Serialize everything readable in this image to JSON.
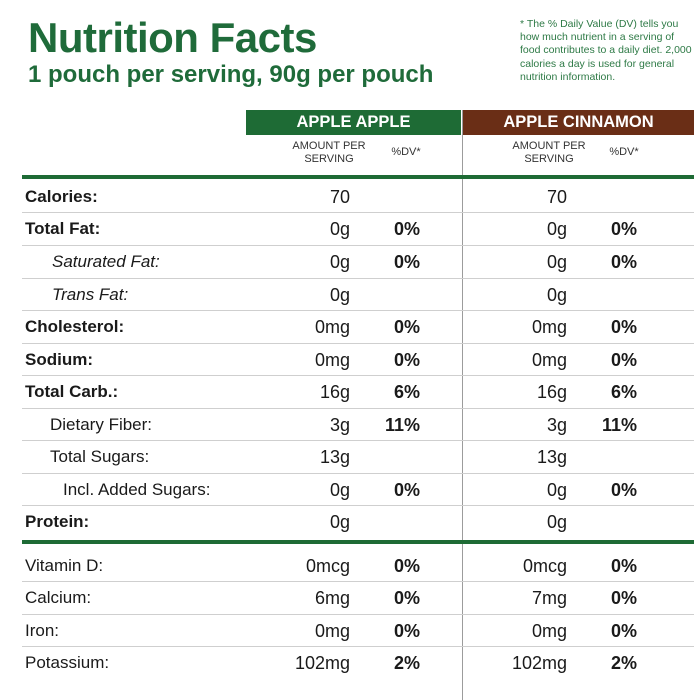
{
  "title": "Nutrition Facts",
  "subtitle": "1 pouch per serving, 90g per pouch",
  "footnote": "* The % Daily Value (DV) tells you how much nutrient in a serving of food contributes to a daily diet. 2,000 calories a day is used for general nutrition information.",
  "columns": [
    {
      "name": "APPLE APPLE",
      "color": "#1e6b35",
      "amount_header": "AMOUNT PER SERVING",
      "dv_header": "%DV*"
    },
    {
      "name": "APPLE CINNAMON",
      "color": "#6a2e16",
      "amount_header": "AMOUNT PER SERVING",
      "dv_header": "%DV*"
    }
  ],
  "rows": [
    {
      "label": "Calories:",
      "style": "bold",
      "apple": {
        "amount": "70",
        "dv": ""
      },
      "cinnamon": {
        "amount": "70",
        "dv": ""
      }
    },
    {
      "label": "Total Fat:",
      "style": "bold",
      "apple": {
        "amount": "0g",
        "dv": "0%"
      },
      "cinnamon": {
        "amount": "0g",
        "dv": "0%"
      }
    },
    {
      "label": "Saturated Fat:",
      "style": "italic",
      "apple": {
        "amount": "0g",
        "dv": "0%"
      },
      "cinnamon": {
        "amount": "0g",
        "dv": "0%"
      }
    },
    {
      "label": "Trans Fat:",
      "style": "italic",
      "apple": {
        "amount": "0g",
        "dv": ""
      },
      "cinnamon": {
        "amount": "0g",
        "dv": ""
      }
    },
    {
      "label": "Cholesterol:",
      "style": "bold",
      "apple": {
        "amount": "0mg",
        "dv": "0%"
      },
      "cinnamon": {
        "amount": "0mg",
        "dv": "0%"
      }
    },
    {
      "label": "Sodium:",
      "style": "bold",
      "apple": {
        "amount": "0mg",
        "dv": "0%"
      },
      "cinnamon": {
        "amount": "0mg",
        "dv": "0%"
      }
    },
    {
      "label": "Total Carb.:",
      "style": "bold",
      "apple": {
        "amount": "16g",
        "dv": "6%"
      },
      "cinnamon": {
        "amount": "16g",
        "dv": "6%"
      }
    },
    {
      "label": "Dietary Fiber:",
      "style": "normal",
      "apple": {
        "amount": "3g",
        "dv": "11%"
      },
      "cinnamon": {
        "amount": "3g",
        "dv": "11%"
      }
    },
    {
      "label": "Total Sugars:",
      "style": "normal",
      "apple": {
        "amount": "13g",
        "dv": ""
      },
      "cinnamon": {
        "amount": "13g",
        "dv": ""
      }
    },
    {
      "label": "Incl. Added Sugars:",
      "style": "normal",
      "apple": {
        "amount": "0g",
        "dv": "0%"
      },
      "cinnamon": {
        "amount": "0g",
        "dv": "0%"
      }
    },
    {
      "label": "Protein:",
      "style": "bold",
      "apple": {
        "amount": "0g",
        "dv": ""
      },
      "cinnamon": {
        "amount": "0g",
        "dv": ""
      }
    },
    {
      "label": "Vitamin D:",
      "style": "normal",
      "apple": {
        "amount": "0mcg",
        "dv": "0%"
      },
      "cinnamon": {
        "amount": "0mcg",
        "dv": "0%"
      }
    },
    {
      "label": "Calcium:",
      "style": "normal",
      "apple": {
        "amount": "6mg",
        "dv": "0%"
      },
      "cinnamon": {
        "amount": "7mg",
        "dv": "0%"
      }
    },
    {
      "label": "Iron:",
      "style": "normal",
      "apple": {
        "amount": "0mg",
        "dv": "0%"
      },
      "cinnamon": {
        "amount": "0mg",
        "dv": "0%"
      }
    },
    {
      "label": "Potassium:",
      "style": "normal",
      "apple": {
        "amount": "102mg",
        "dv": "2%"
      },
      "cinnamon": {
        "amount": "102mg",
        "dv": "2%"
      }
    }
  ]
}
